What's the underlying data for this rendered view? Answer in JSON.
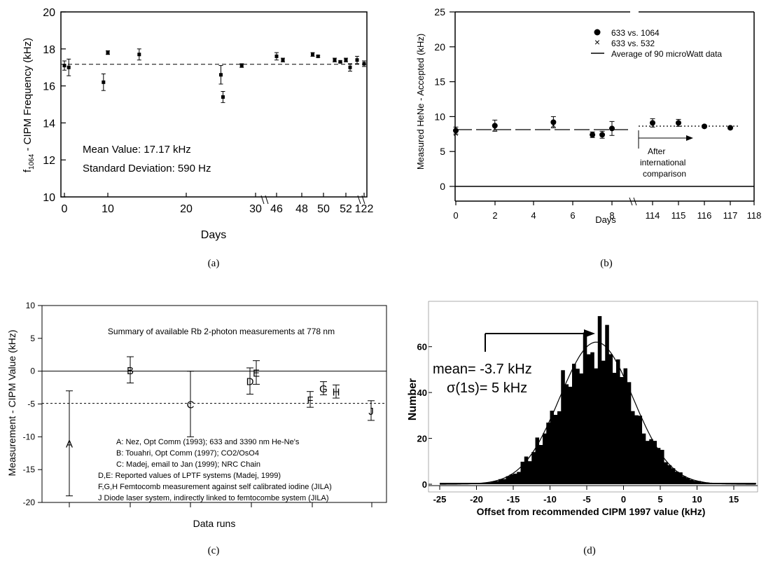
{
  "chart_data": [
    {
      "panel": "a",
      "type": "scatter",
      "caption": "(a)",
      "xlabel": "Days",
      "ylabel": "f1064 - CIPM Frequency (kHz)",
      "ylabel_main": "f",
      "ylabel_sub": "1064",
      "ylabel_rest": " - CIPM Frequency (kHz)",
      "ylim": [
        10,
        20
      ],
      "yticks": [
        "10",
        "12",
        "14",
        "16",
        "18",
        "20"
      ],
      "xticks": [
        "0",
        "10",
        "20",
        "30",
        "46",
        "48",
        "50",
        "52",
        "122"
      ],
      "axis_break": true,
      "reference_line": 17.17,
      "annotations": [
        "Mean Value:  17.17 kHz",
        "Standard Deviation:  590 Hz"
      ],
      "x": [
        "0",
        "1",
        "9",
        "10",
        "14",
        "25",
        "25.3",
        "28",
        "46",
        "46.5",
        "49",
        "49.5",
        "51",
        "51.5",
        "52",
        "121",
        "121.5",
        "122"
      ],
      "values": [
        17.1,
        17.0,
        16.2,
        17.8,
        17.7,
        16.6,
        15.4,
        17.1,
        17.6,
        17.4,
        17.7,
        17.6,
        17.4,
        17.3,
        17.4,
        17.0,
        17.4,
        17.2
      ],
      "errors": [
        0.25,
        0.45,
        0.45,
        0.1,
        0.3,
        0.5,
        0.3,
        0.1,
        0.2,
        0.1,
        0.1,
        0.05,
        0.1,
        0.05,
        0.1,
        0.2,
        0.2,
        0.15
      ]
    },
    {
      "panel": "b",
      "type": "scatter",
      "caption": "(b)",
      "xlabel": "Days",
      "ylabel": "Measured HeNe  - Accepted (kHz)",
      "ylim": [
        0,
        25
      ],
      "yticks": [
        "0",
        "5",
        "10",
        "15",
        "20",
        "25"
      ],
      "xticks": [
        "0",
        "2",
        "4",
        "6",
        "8",
        "114",
        "115",
        "116",
        "117",
        "118"
      ],
      "axis_break": true,
      "legend": [
        "633 vs. 1064",
        "633 vs. 532",
        "Average of 90 microWatt data"
      ],
      "annotations": [
        "After",
        "international",
        "comparison"
      ],
      "series": [
        {
          "name": "633 vs. 1064",
          "x": [
            "0",
            "2",
            "5",
            "7",
            "7.5",
            "8",
            "114",
            "115",
            "116",
            "117"
          ],
          "values": [
            8.0,
            8.7,
            9.2,
            7.4,
            7.4,
            8.3,
            9.1,
            9.1,
            8.6,
            8.4
          ],
          "errors": [
            0.5,
            0.8,
            0.8,
            0.4,
            0.5,
            1.0,
            0.6,
            0.5,
            0.2,
            0.2
          ]
        },
        {
          "name": "633 vs. 532",
          "x": [
            "0",
            "2",
            "5"
          ],
          "values": [
            7.6,
            8.3,
            8.8
          ],
          "errors": [
            0.4,
            0.6,
            0.6
          ]
        },
        {
          "name": "Average of 90 microWatt data",
          "values": [
            8.1,
            8.6
          ]
        }
      ]
    },
    {
      "panel": "c",
      "type": "scatter",
      "caption": "(c)",
      "title": "Summary of available Rb 2-photon measurements at 778 nm",
      "xlabel": "Data runs",
      "ylabel": "Measurement - CIPM Value (kHz)",
      "ylim": [
        -20,
        10
      ],
      "yticks": [
        "10",
        "5",
        "0",
        "-5",
        "-10",
        "-15",
        "-20"
      ],
      "reference_line": -4.9,
      "labels": [
        "A",
        "B",
        "C",
        "D",
        "E",
        "F",
        "G",
        "H",
        "J"
      ],
      "values": [
        -11,
        0.2,
        -5,
        -1.5,
        -0.2,
        -4.3,
        -2.6,
        -3.1,
        -6
      ],
      "errors": [
        8,
        2,
        5,
        2,
        1.8,
        1.2,
        1,
        1,
        1.5
      ],
      "legend": [
        "A:  Nez, Opt Comm (1993); 633 and 3390 nm He-Ne's",
        "B:  Touahri, Opt Comm (1997); CO2/OsO4",
        "C:  Madej, email to Jan (1999);  NRC Chain",
        "D,E:  Reported values of LPTF systems (Madej, 1999)",
        "F,G,H  Femtocomb measurement against self calibrated iodine (JILA)",
        "J  Diode laser system, indirectly linked to femtocombe system (JILA)"
      ]
    },
    {
      "panel": "d",
      "type": "bar",
      "caption": "(d)",
      "xlabel": "Offset from recommended CIPM 1997 value (kHz)",
      "ylabel": "Number",
      "xticks": [
        "-25",
        "-20",
        "-15",
        "-10",
        "-5",
        "0",
        "5",
        "10",
        "15"
      ],
      "yticks": [
        "0",
        "20",
        "40",
        "60"
      ],
      "xlim": [
        -25,
        18
      ],
      "annotations": [
        "mean= -3.7 kHz",
        "σ(1s)= 5 kHz"
      ],
      "gaussian": {
        "mean": -3.7,
        "sigma": 5,
        "peak": 62
      },
      "bin_width": 0.5
    }
  ]
}
